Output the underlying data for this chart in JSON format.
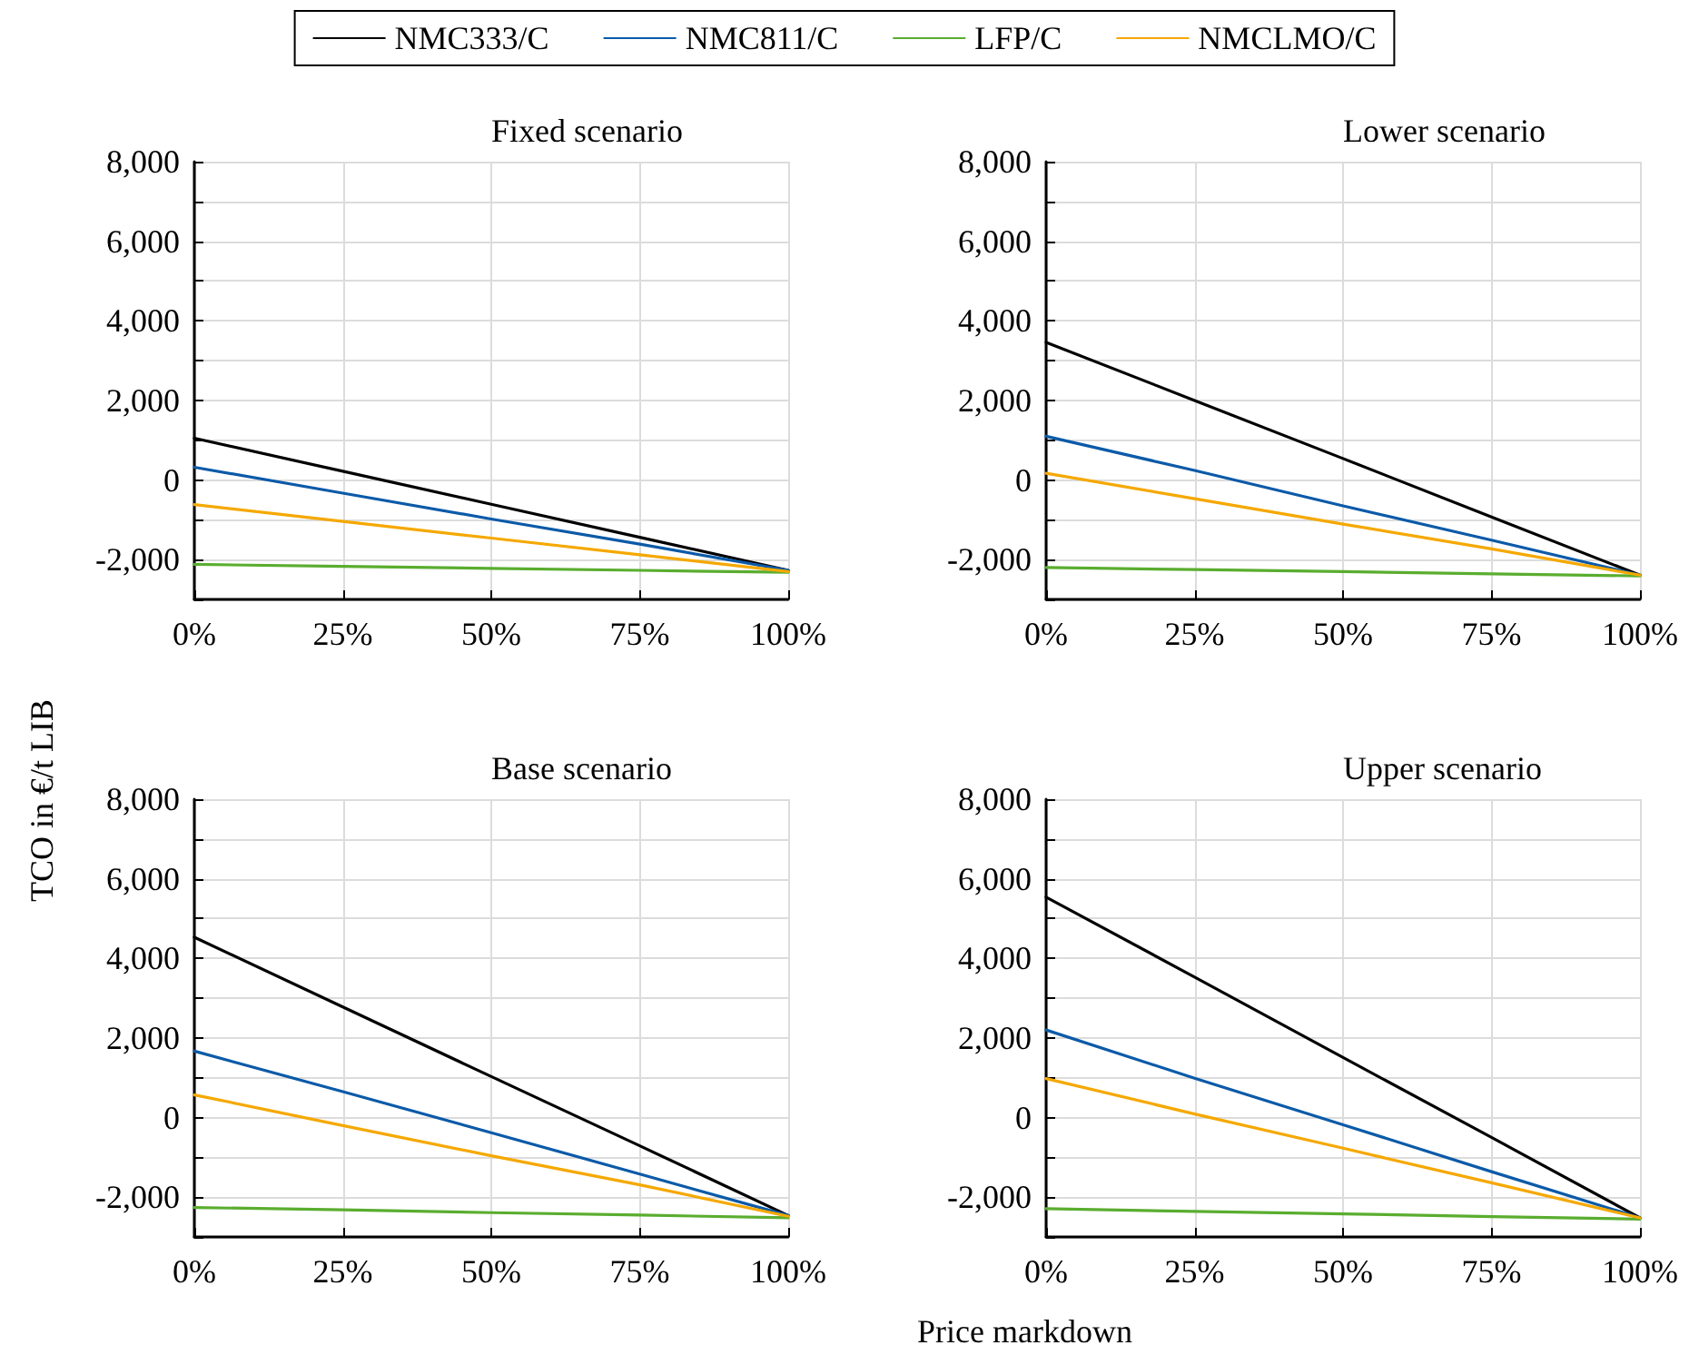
{
  "chart_data": [
    {
      "type": "line",
      "title": "Fixed scenario",
      "ylabel": "TCO in €/t LIB",
      "xlabel": "Price markdown",
      "legend": "top",
      "grid": true,
      "marker": "none",
      "line_style": "solid",
      "x": [
        0,
        25,
        50,
        75,
        100
      ],
      "xlim": [
        0,
        100
      ],
      "xticks": [
        {
          "value": 0,
          "label": "0%"
        },
        {
          "value": 25,
          "label": "25%"
        },
        {
          "value": 50,
          "label": "50%"
        },
        {
          "value": 75,
          "label": "75%"
        },
        {
          "value": 100,
          "label": "100%"
        }
      ],
      "ylim": [
        -3000,
        8000
      ],
      "yticks": [
        {
          "value": -3000,
          "label": null
        },
        {
          "value": -2000,
          "label": "-2,000"
        },
        {
          "value": -1000,
          "label": null
        },
        {
          "value": 0,
          "label": "0"
        },
        {
          "value": 1000,
          "label": null
        },
        {
          "value": 2000,
          "label": "2,000"
        },
        {
          "value": 3000,
          "label": null
        },
        {
          "value": 4000,
          "label": "4,000"
        },
        {
          "value": 5000,
          "label": null
        },
        {
          "value": 6000,
          "label": "6,000"
        },
        {
          "value": 7000,
          "label": null
        },
        {
          "value": 8000,
          "label": "8,000"
        }
      ],
      "series": [
        {
          "name": "NMC333/C",
          "color": "#000000",
          "values": [
            1050,
            220,
            -610,
            -1440,
            -2270
          ]
        },
        {
          "name": "NMC811/C",
          "color": "#0b5aa8",
          "values": [
            320,
            -330,
            -980,
            -1610,
            -2270
          ]
        },
        {
          "name": "LFP/C",
          "color": "#5aad2f",
          "values": [
            -2120,
            -2170,
            -2220,
            -2270,
            -2320
          ]
        },
        {
          "name": "NMCLMO/C",
          "color": "#f5a800",
          "values": [
            -620,
            -1040,
            -1460,
            -1880,
            -2300
          ]
        }
      ]
    },
    {
      "type": "line",
      "title": "Lower scenario",
      "grid": true,
      "marker": "none",
      "line_style": "solid",
      "x": [
        0,
        25,
        50,
        75,
        100
      ],
      "xlim": [
        0,
        100
      ],
      "xticks": [
        {
          "value": 0,
          "label": "0%"
        },
        {
          "value": 25,
          "label": "25%"
        },
        {
          "value": 50,
          "label": "50%"
        },
        {
          "value": 75,
          "label": "75%"
        },
        {
          "value": 100,
          "label": "100%"
        }
      ],
      "ylim": [
        -3000,
        8000
      ],
      "yticks": [
        {
          "value": -3000,
          "label": null
        },
        {
          "value": -2000,
          "label": "-2,000"
        },
        {
          "value": -1000,
          "label": null
        },
        {
          "value": 0,
          "label": "0"
        },
        {
          "value": 1000,
          "label": null
        },
        {
          "value": 2000,
          "label": "2,000"
        },
        {
          "value": 3000,
          "label": null
        },
        {
          "value": 4000,
          "label": "4,000"
        },
        {
          "value": 5000,
          "label": null
        },
        {
          "value": 6000,
          "label": "6,000"
        },
        {
          "value": 7000,
          "label": null
        },
        {
          "value": 8000,
          "label": "8,000"
        }
      ],
      "series": [
        {
          "color": "#000000",
          "values": [
            3460,
            2000,
            540,
            -930,
            -2390
          ]
        },
        {
          "color": "#0b5aa8",
          "values": [
            1100,
            240,
            -650,
            -1510,
            -2390
          ]
        },
        {
          "color": "#5aad2f",
          "values": [
            -2200,
            -2250,
            -2300,
            -2360,
            -2410
          ]
        },
        {
          "color": "#f5a800",
          "values": [
            170,
            -470,
            -1110,
            -1730,
            -2390
          ]
        }
      ]
    },
    {
      "type": "line",
      "title": "Base scenario",
      "grid": true,
      "marker": "none",
      "line_style": "solid",
      "x": [
        0,
        25,
        50,
        75,
        100
      ],
      "xlim": [
        0,
        100
      ],
      "xticks": [
        {
          "value": 0,
          "label": "0%"
        },
        {
          "value": 25,
          "label": "25%"
        },
        {
          "value": 50,
          "label": "50%"
        },
        {
          "value": 75,
          "label": "75%"
        },
        {
          "value": 100,
          "label": "100%"
        }
      ],
      "ylim": [
        -3000,
        8000
      ],
      "yticks": [
        {
          "value": -3000,
          "label": null
        },
        {
          "value": -2000,
          "label": "-2,000"
        },
        {
          "value": -1000,
          "label": null
        },
        {
          "value": 0,
          "label": "0"
        },
        {
          "value": 1000,
          "label": null
        },
        {
          "value": 2000,
          "label": "2,000"
        },
        {
          "value": 3000,
          "label": null
        },
        {
          "value": 4000,
          "label": "4,000"
        },
        {
          "value": 5000,
          "label": null
        },
        {
          "value": 6000,
          "label": "6,000"
        },
        {
          "value": 7000,
          "label": null
        },
        {
          "value": 8000,
          "label": "8,000"
        }
      ],
      "series": [
        {
          "color": "#000000",
          "values": [
            4530,
            2780,
            1030,
            -710,
            -2460
          ]
        },
        {
          "color": "#0b5aa8",
          "values": [
            1670,
            650,
            -380,
            -1420,
            -2460
          ]
        },
        {
          "color": "#5aad2f",
          "values": [
            -2260,
            -2320,
            -2390,
            -2450,
            -2520
          ]
        },
        {
          "color": "#f5a800",
          "values": [
            570,
            -200,
            -960,
            -1690,
            -2480
          ]
        }
      ]
    },
    {
      "type": "line",
      "title": "Upper scenario",
      "grid": true,
      "marker": "none",
      "line_style": "solid",
      "x": [
        0,
        25,
        50,
        75,
        100
      ],
      "xlim": [
        0,
        100
      ],
      "xticks": [
        {
          "value": 0,
          "label": "0%"
        },
        {
          "value": 25,
          "label": "25%"
        },
        {
          "value": 50,
          "label": "50%"
        },
        {
          "value": 75,
          "label": "75%"
        },
        {
          "value": 100,
          "label": "100%"
        }
      ],
      "ylim": [
        -3000,
        8000
      ],
      "yticks": [
        {
          "value": -3000,
          "label": null
        },
        {
          "value": -2000,
          "label": "-2,000"
        },
        {
          "value": -1000,
          "label": null
        },
        {
          "value": 0,
          "label": "0"
        },
        {
          "value": 1000,
          "label": null
        },
        {
          "value": 2000,
          "label": "2,000"
        },
        {
          "value": 3000,
          "label": null
        },
        {
          "value": 4000,
          "label": "4,000"
        },
        {
          "value": 5000,
          "label": null
        },
        {
          "value": 6000,
          "label": "6,000"
        },
        {
          "value": 7000,
          "label": null
        },
        {
          "value": 8000,
          "label": "8,000"
        }
      ],
      "series": [
        {
          "color": "#000000",
          "values": [
            5540,
            3530,
            1510,
            -500,
            -2520
          ]
        },
        {
          "color": "#0b5aa8",
          "values": [
            2200,
            990,
            -180,
            -1360,
            -2520
          ]
        },
        {
          "color": "#5aad2f",
          "values": [
            -2290,
            -2360,
            -2420,
            -2490,
            -2550
          ]
        },
        {
          "color": "#f5a800",
          "values": [
            980,
            90,
            -770,
            -1640,
            -2520
          ]
        }
      ]
    }
  ]
}
